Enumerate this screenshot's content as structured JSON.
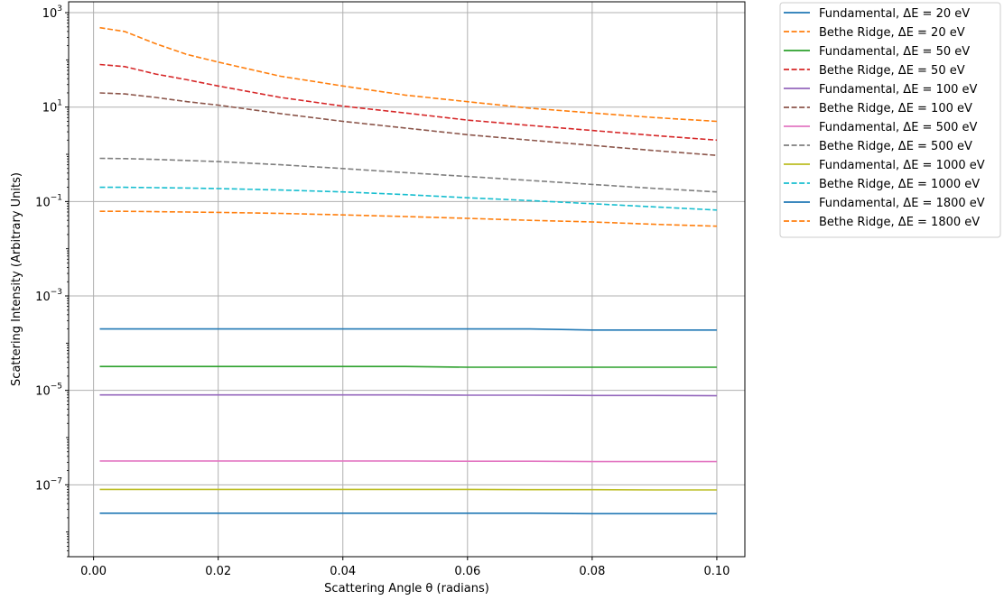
{
  "chart_data": {
    "type": "line",
    "xlabel": "Scattering Angle θ (radians)",
    "ylabel": "Scattering Intensity (Arbitrary Units)",
    "xscale": "linear",
    "yscale": "log",
    "xlim": [
      -0.004,
      0.1045
    ],
    "ylim": [
      3e-09,
      1700
    ],
    "xticks": [
      0.0,
      0.02,
      0.04,
      0.06,
      0.08,
      0.1
    ],
    "xtick_labels": [
      "0.00",
      "0.02",
      "0.04",
      "0.06",
      "0.08",
      "0.10"
    ],
    "yticks": [
      {
        "base": "10",
        "exp": "−7",
        "value": 1e-07
      },
      {
        "base": "10",
        "exp": "−5",
        "value": 1e-05
      },
      {
        "base": "10",
        "exp": "−3",
        "value": 0.001
      },
      {
        "base": "10",
        "exp": "−1",
        "value": 0.1
      },
      {
        "base": "10",
        "exp": "1",
        "value": 10
      },
      {
        "base": "10",
        "exp": "3",
        "value": 1000
      }
    ],
    "grid": true,
    "legend_position": "outside-right-top",
    "x": [
      0.001,
      0.005,
      0.01,
      0.015,
      0.02,
      0.03,
      0.04,
      0.05,
      0.06,
      0.07,
      0.08,
      0.09,
      0.1
    ],
    "series": [
      {
        "name": "Fundamental, ΔE = 20 eV",
        "color": "#1f77b4",
        "style": "solid",
        "values": [
          0.0002,
          0.0002,
          0.0002,
          0.0002,
          0.0002,
          0.0002,
          0.0002,
          0.0002,
          0.0002,
          0.0002,
          0.00019,
          0.00019,
          0.00019
        ]
      },
      {
        "name": "Bethe Ridge, ΔE = 20 eV",
        "color": "#ff7f0e",
        "style": "dashed",
        "values": [
          480,
          400,
          220,
          130,
          90,
          45,
          28,
          18,
          13,
          9.5,
          7.5,
          6,
          5
        ]
      },
      {
        "name": "Fundamental, ΔE = 50 eV",
        "color": "#2ca02c",
        "style": "solid",
        "values": [
          3.2e-05,
          3.2e-05,
          3.2e-05,
          3.2e-05,
          3.2e-05,
          3.2e-05,
          3.2e-05,
          3.2e-05,
          3.1e-05,
          3.1e-05,
          3.1e-05,
          3.1e-05,
          3.1e-05
        ]
      },
      {
        "name": "Bethe Ridge, ΔE = 50 eV",
        "color": "#d62728",
        "style": "dashed",
        "values": [
          80,
          72,
          50,
          38,
          28,
          16,
          10.5,
          7.5,
          5.3,
          4.1,
          3.2,
          2.5,
          2.0
        ]
      },
      {
        "name": "Fundamental, ΔE = 100 eV",
        "color": "#9467bd",
        "style": "solid",
        "values": [
          8e-06,
          8e-06,
          8e-06,
          8e-06,
          8e-06,
          8e-06,
          8e-06,
          8e-06,
          7.9e-06,
          7.9e-06,
          7.8e-06,
          7.8e-06,
          7.7e-06
        ]
      },
      {
        "name": "Bethe Ridge, ΔE = 100 eV",
        "color": "#8c564b",
        "style": "dashed",
        "values": [
          20,
          19,
          16,
          13,
          11,
          7.3,
          5,
          3.6,
          2.6,
          2.0,
          1.55,
          1.2,
          0.95
        ]
      },
      {
        "name": "Fundamental, ΔE = 500 eV",
        "color": "#e377c2",
        "style": "solid",
        "values": [
          3.2e-07,
          3.2e-07,
          3.2e-07,
          3.2e-07,
          3.2e-07,
          3.2e-07,
          3.2e-07,
          3.2e-07,
          3.15e-07,
          3.15e-07,
          3.1e-07,
          3.1e-07,
          3.1e-07
        ]
      },
      {
        "name": "Bethe Ridge, ΔE = 500 eV",
        "color": "#7f7f7f",
        "style": "dashed",
        "values": [
          0.82,
          0.81,
          0.78,
          0.74,
          0.7,
          0.6,
          0.5,
          0.41,
          0.34,
          0.28,
          0.23,
          0.19,
          0.16
        ]
      },
      {
        "name": "Fundamental, ΔE = 1000 eV",
        "color": "#bcbd22",
        "style": "solid",
        "values": [
          8e-08,
          8e-08,
          8e-08,
          8e-08,
          8e-08,
          8e-08,
          8e-08,
          8e-08,
          8e-08,
          7.9e-08,
          7.9e-08,
          7.8e-08,
          7.8e-08
        ]
      },
      {
        "name": "Bethe Ridge, ΔE = 1000 eV",
        "color": "#17becf",
        "style": "dashed",
        "values": [
          0.2,
          0.2,
          0.197,
          0.193,
          0.188,
          0.175,
          0.16,
          0.14,
          0.12,
          0.105,
          0.09,
          0.077,
          0.066
        ]
      },
      {
        "name": "Fundamental, ΔE = 1800 eV",
        "color": "#1f77b4",
        "style": "solid",
        "values": [
          2.5e-08,
          2.5e-08,
          2.5e-08,
          2.5e-08,
          2.5e-08,
          2.5e-08,
          2.5e-08,
          2.5e-08,
          2.5e-08,
          2.5e-08,
          2.45e-08,
          2.45e-08,
          2.45e-08
        ]
      },
      {
        "name": "Bethe Ridge, ΔE = 1800 eV",
        "color": "#ff7f0e",
        "style": "dashed",
        "values": [
          0.062,
          0.062,
          0.061,
          0.06,
          0.059,
          0.056,
          0.052,
          0.048,
          0.044,
          0.04,
          0.037,
          0.033,
          0.03
        ]
      }
    ]
  }
}
